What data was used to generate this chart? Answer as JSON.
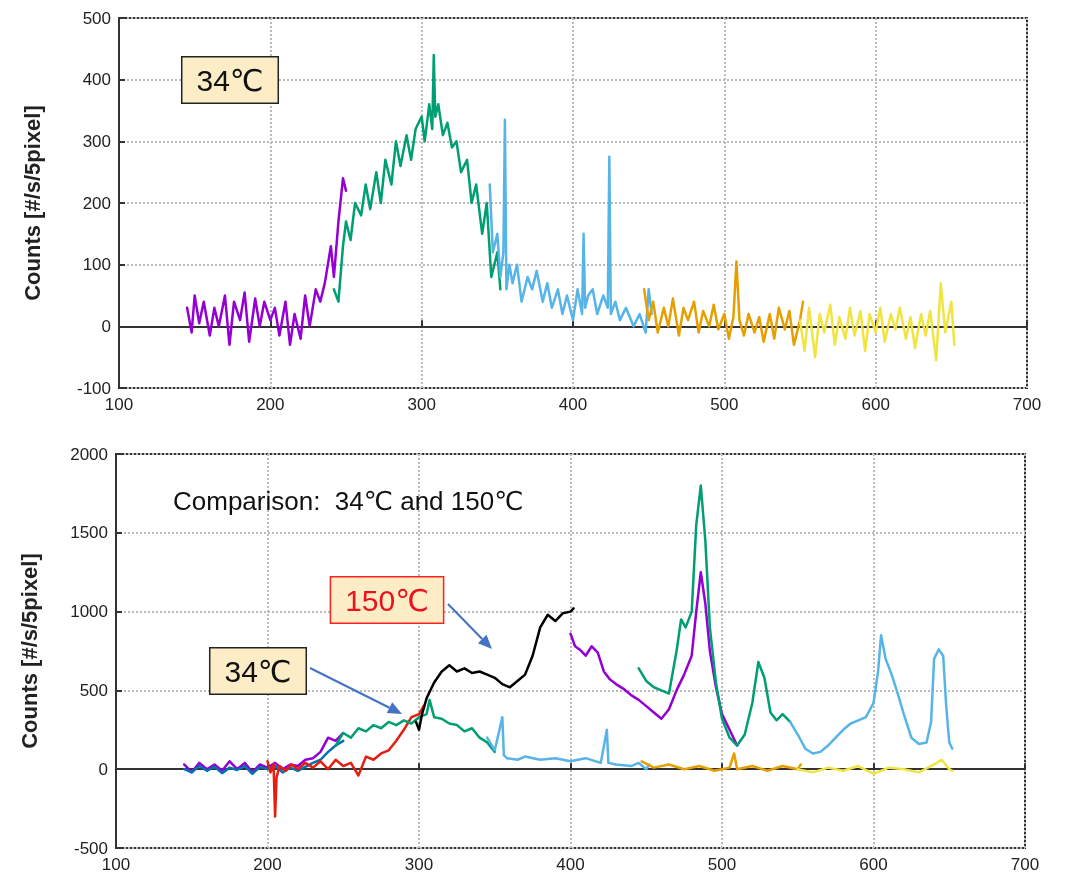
{
  "chart_data": [
    {
      "type": "line",
      "ylabel": "Counts [#/s/5pixel]",
      "annotations": [
        "34℃"
      ],
      "xlim": [
        100,
        700
      ],
      "xticks": [
        100,
        200,
        300,
        400,
        500,
        600,
        700
      ],
      "ylim": [
        -100,
        500
      ],
      "yticks": [
        -100,
        0,
        100,
        200,
        300,
        400,
        500
      ],
      "grid": true,
      "line_style": "solid",
      "marker": "none",
      "series": [
        {
          "color": "#9400d3",
          "x": [
            145,
            148,
            150,
            153,
            156,
            160,
            163,
            166,
            170,
            173,
            176,
            180,
            183,
            186,
            190,
            193,
            196,
            200,
            203,
            206,
            210,
            213,
            216,
            220,
            223,
            226,
            230,
            233,
            236,
            240,
            242,
            245,
            248,
            250
          ],
          "values": [
            30,
            -10,
            50,
            5,
            40,
            -15,
            30,
            0,
            50,
            -30,
            40,
            10,
            55,
            -25,
            45,
            0,
            40,
            10,
            30,
            -15,
            40,
            -30,
            20,
            -20,
            50,
            0,
            60,
            40,
            70,
            130,
            80,
            170,
            240,
            220
          ]
        },
        {
          "color": "#009e73",
          "x": [
            242,
            245,
            248,
            250,
            253,
            256,
            260,
            263,
            266,
            270,
            273,
            276,
            280,
            283,
            286,
            290,
            293,
            296,
            300,
            302,
            305,
            307,
            308,
            309,
            311,
            314,
            317,
            320,
            323,
            326,
            330,
            333,
            336,
            340,
            343,
            346,
            350,
            352
          ],
          "values": [
            60,
            40,
            130,
            170,
            140,
            200,
            180,
            230,
            190,
            250,
            200,
            270,
            230,
            300,
            260,
            310,
            270,
            320,
            340,
            300,
            360,
            320,
            440,
            340,
            360,
            310,
            330,
            290,
            300,
            250,
            270,
            200,
            230,
            150,
            200,
            80,
            120,
            60
          ]
        },
        {
          "color": "#56b4e9",
          "x": [
            345,
            347,
            350,
            352,
            354,
            355,
            356,
            358,
            360,
            363,
            366,
            370,
            373,
            376,
            380,
            383,
            386,
            390,
            393,
            396,
            400,
            403,
            406,
            407,
            408,
            410,
            413,
            416,
            420,
            423,
            424,
            425,
            428,
            431,
            435,
            440,
            444,
            448,
            450,
            452
          ],
          "values": [
            230,
            120,
            150,
            80,
            120,
            335,
            60,
            100,
            70,
            100,
            40,
            80,
            60,
            90,
            40,
            70,
            30,
            60,
            20,
            50,
            10,
            60,
            20,
            150,
            30,
            50,
            60,
            20,
            50,
            30,
            275,
            20,
            40,
            10,
            30,
            0,
            20,
            -10,
            60,
            20
          ]
        },
        {
          "color": "#e69f00",
          "x": [
            447,
            450,
            453,
            456,
            460,
            463,
            466,
            470,
            473,
            476,
            480,
            483,
            486,
            490,
            493,
            496,
            500,
            503,
            506,
            508,
            510,
            513,
            516,
            520,
            523,
            526,
            530,
            533,
            536,
            540,
            543,
            546,
            550,
            552
          ],
          "values": [
            60,
            10,
            40,
            -10,
            30,
            0,
            45,
            -15,
            30,
            10,
            40,
            -10,
            25,
            0,
            35,
            -5,
            20,
            -20,
            15,
            105,
            10,
            -15,
            20,
            -10,
            15,
            -25,
            20,
            -20,
            30,
            -5,
            25,
            -30,
            10,
            40
          ]
        },
        {
          "color": "#f0e442",
          "x": [
            550,
            553,
            556,
            560,
            563,
            566,
            570,
            573,
            576,
            580,
            583,
            586,
            590,
            593,
            596,
            600,
            603,
            606,
            610,
            613,
            616,
            620,
            623,
            626,
            630,
            633,
            636,
            640,
            643,
            646,
            650,
            652
          ],
          "values": [
            10,
            -40,
            30,
            -50,
            20,
            -10,
            35,
            -30,
            15,
            -20,
            30,
            -15,
            25,
            -40,
            20,
            -10,
            30,
            -25,
            20,
            -5,
            30,
            -20,
            15,
            -35,
            20,
            -15,
            25,
            -55,
            70,
            -10,
            40,
            -30
          ]
        }
      ]
    },
    {
      "type": "line",
      "ylabel": "Counts [#/s/5pixel]",
      "annotations": [
        "Comparison:  34℃ and 150℃",
        "34℃",
        "150℃"
      ],
      "xlim": [
        100,
        700
      ],
      "xticks": [
        100,
        200,
        300,
        400,
        500,
        600,
        700
      ],
      "ylim": [
        -500,
        2000
      ],
      "yticks": [
        -500,
        0,
        500,
        1000,
        1500,
        2000
      ],
      "grid": true,
      "line_style": "solid",
      "marker": "none",
      "series": [
        {
          "color": "#9400d3",
          "x": [
            145,
            150,
            155,
            160,
            165,
            170,
            175,
            180,
            185,
            190,
            195,
            200,
            205,
            210,
            215,
            220,
            225,
            230,
            235,
            240,
            245,
            250
          ],
          "values": [
            30,
            -20,
            40,
            0,
            30,
            -10,
            50,
            0,
            40,
            -20,
            30,
            10,
            40,
            0,
            30,
            20,
            60,
            70,
            110,
            200,
            180,
            230
          ]
        },
        {
          "color": "#0072b2",
          "x": [
            145,
            150,
            155,
            160,
            165,
            170,
            175,
            180,
            185,
            190,
            195,
            200,
            205,
            210,
            215,
            220,
            225,
            230,
            235,
            240,
            245,
            250
          ],
          "values": [
            0,
            -20,
            20,
            -10,
            15,
            -25,
            10,
            -5,
            20,
            -30,
            15,
            0,
            20,
            -20,
            10,
            -10,
            15,
            40,
            60,
            110,
            150,
            180
          ]
        },
        {
          "color": "#e51e10",
          "x": [
            200,
            202,
            204,
            205,
            206,
            208,
            212,
            216,
            220,
            225,
            230,
            235,
            240,
            245,
            250,
            255,
            260,
            265,
            270,
            275,
            280,
            285,
            290,
            295,
            300,
            303
          ],
          "values": [
            50,
            -20,
            30,
            -300,
            -50,
            20,
            -10,
            30,
            0,
            40,
            10,
            50,
            0,
            60,
            20,
            40,
            -40,
            80,
            60,
            100,
            120,
            180,
            250,
            330,
            350,
            400
          ]
        },
        {
          "color": "#009e73",
          "x": [
            245,
            250,
            255,
            260,
            265,
            270,
            275,
            280,
            285,
            290,
            295,
            300,
            305,
            307,
            310,
            315,
            320,
            325,
            330,
            335,
            340,
            345,
            350
          ],
          "values": [
            150,
            230,
            200,
            260,
            240,
            280,
            260,
            300,
            280,
            310,
            290,
            330,
            350,
            440,
            330,
            320,
            290,
            280,
            240,
            260,
            200,
            170,
            110
          ]
        },
        {
          "color": "#56b4e9",
          "x": [
            345,
            350,
            355,
            356,
            358,
            365,
            370,
            380,
            390,
            400,
            410,
            420,
            424,
            425,
            430,
            440,
            445,
            450,
            452
          ],
          "values": [
            200,
            120,
            330,
            90,
            70,
            60,
            80,
            60,
            70,
            50,
            70,
            40,
            250,
            40,
            30,
            20,
            40,
            0,
            30
          ]
        },
        {
          "color": "#000000",
          "x": [
            298,
            300,
            302,
            305,
            310,
            315,
            320,
            325,
            330,
            335,
            340,
            345,
            350,
            355,
            360,
            365,
            370,
            375,
            380,
            385,
            390,
            395,
            400,
            402
          ],
          "values": [
            300,
            250,
            350,
            450,
            550,
            620,
            660,
            620,
            640,
            610,
            620,
            600,
            580,
            540,
            520,
            560,
            600,
            720,
            900,
            980,
            940,
            990,
            1000,
            1020
          ]
        },
        {
          "color": "#9400d3",
          "x": [
            400,
            403,
            406,
            410,
            414,
            418,
            422,
            426,
            430,
            435,
            440,
            445,
            450,
            455,
            460,
            465,
            470,
            475,
            480,
            483,
            486,
            489,
            492,
            496,
            500,
            505,
            510
          ],
          "values": [
            860,
            780,
            760,
            720,
            780,
            740,
            620,
            570,
            540,
            510,
            470,
            440,
            400,
            360,
            320,
            380,
            500,
            600,
            720,
            1000,
            1250,
            1050,
            750,
            520,
            350,
            250,
            150
          ]
        },
        {
          "color": "#009e73",
          "x": [
            445,
            450,
            455,
            460,
            465,
            470,
            473,
            476,
            480,
            483,
            486,
            489,
            492,
            496,
            500,
            505,
            510,
            515,
            520,
            524,
            528,
            532,
            536,
            540,
            545
          ],
          "values": [
            640,
            560,
            520,
            500,
            480,
            750,
            950,
            900,
            1000,
            1550,
            1800,
            1450,
            900,
            550,
            320,
            200,
            150,
            220,
            420,
            680,
            580,
            360,
            310,
            350,
            300
          ]
        },
        {
          "color": "#56b4e9",
          "x": [
            545,
            550,
            555,
            560,
            565,
            570,
            575,
            580,
            585,
            590,
            595,
            600,
            603,
            605,
            608,
            612,
            616,
            620,
            625,
            630,
            635,
            638,
            640,
            643,
            646,
            648,
            650,
            652
          ],
          "values": [
            300,
            220,
            130,
            100,
            110,
            150,
            200,
            250,
            290,
            310,
            330,
            420,
            620,
            850,
            700,
            600,
            480,
            350,
            200,
            160,
            170,
            300,
            700,
            760,
            720,
            400,
            170,
            130
          ]
        },
        {
          "color": "#e69f00",
          "x": [
            447,
            455,
            465,
            475,
            485,
            495,
            505,
            508,
            510,
            520,
            530,
            540,
            550,
            552
          ],
          "values": [
            50,
            10,
            30,
            0,
            20,
            -10,
            10,
            100,
            0,
            20,
            -10,
            20,
            0,
            30
          ]
        },
        {
          "color": "#f0e442",
          "x": [
            550,
            560,
            570,
            580,
            590,
            600,
            610,
            620,
            630,
            640,
            645,
            650,
            652
          ],
          "values": [
            0,
            -20,
            10,
            -10,
            20,
            -30,
            10,
            0,
            -20,
            30,
            60,
            0,
            -10
          ]
        }
      ]
    }
  ]
}
